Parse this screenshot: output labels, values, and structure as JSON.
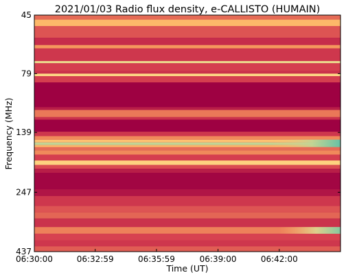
{
  "chart_data": {
    "type": "heatmap",
    "title": "2021/01/03  Radio flux density, e-CALLISTO (HUMAIN)",
    "xlabel": "Time (UT)",
    "ylabel": "Frequency (MHz)",
    "x_ticks": [
      "06:30:00",
      "06:32:59",
      "06:35:59",
      "06:39:00",
      "06:42:00"
    ],
    "y_ticks": [
      "45",
      "79",
      "139",
      "247",
      "437"
    ],
    "x_range": [
      "06:30:00",
      "06:45:00"
    ],
    "y_range_mhz": [
      45,
      437
    ],
    "y_axis_inverted": true,
    "colormap": "Spectral_r",
    "colors": {
      "background": "#9e0142",
      "mid": "#d53e4f",
      "bright": "#fdae61",
      "peak": "#fee08b",
      "extreme": "#66c2a5"
    },
    "bands": [
      {
        "f_start": 45,
        "f_end": 47,
        "level": 0.35
      },
      {
        "f_start": 47,
        "f_end": 50,
        "level": 0.55
      },
      {
        "f_start": 50,
        "f_end": 56,
        "level": 0.3
      },
      {
        "f_start": 56,
        "f_end": 60,
        "level": 0.18
      },
      {
        "f_start": 60,
        "f_end": 62,
        "level": 0.45
      },
      {
        "f_start": 62,
        "f_end": 70,
        "level": 0.22
      },
      {
        "f_start": 70,
        "f_end": 71.5,
        "level": 0.78
      },
      {
        "f_start": 71.5,
        "f_end": 77,
        "level": 0.25
      },
      {
        "f_start": 77,
        "f_end": 79,
        "level": 0.2
      },
      {
        "f_start": 79,
        "f_end": 81,
        "level": 0.72
      },
      {
        "f_start": 81,
        "f_end": 86,
        "level": 0.25
      },
      {
        "f_start": 86,
        "f_end": 109,
        "level": 0.0
      },
      {
        "f_start": 109,
        "f_end": 112,
        "level": 0.12
      },
      {
        "f_start": 112,
        "f_end": 120,
        "level": 0.38
      },
      {
        "f_start": 120,
        "f_end": 123,
        "level": 0.2
      },
      {
        "f_start": 123,
        "f_end": 138,
        "level": 0.0
      },
      {
        "f_start": 138,
        "f_end": 144,
        "level": 0.22
      },
      {
        "f_start": 144,
        "f_end": 149,
        "level": 0.42
      },
      {
        "f_start": 149,
        "f_end": 153,
        "level": 0.6
      },
      {
        "f_start": 153,
        "f_end": 157,
        "level": 0.85
      },
      {
        "f_start": 157,
        "f_end": 160,
        "level": 0.55
      },
      {
        "f_start": 160,
        "f_end": 165,
        "level": 0.35
      },
      {
        "f_start": 165,
        "f_end": 172,
        "level": 0.42
      },
      {
        "f_start": 172,
        "f_end": 182,
        "level": 0.25
      },
      {
        "f_start": 182,
        "f_end": 190,
        "level": 0.68
      },
      {
        "f_start": 190,
        "f_end": 197,
        "level": 0.28
      },
      {
        "f_start": 197,
        "f_end": 205,
        "level": 0.12
      },
      {
        "f_start": 205,
        "f_end": 240,
        "level": 0.02
      },
      {
        "f_start": 240,
        "f_end": 256,
        "level": 0.08
      },
      {
        "f_start": 256,
        "f_end": 282,
        "level": 0.22
      },
      {
        "f_start": 282,
        "f_end": 300,
        "level": 0.3
      },
      {
        "f_start": 300,
        "f_end": 318,
        "level": 0.34
      },
      {
        "f_start": 318,
        "f_end": 345,
        "level": 0.2
      },
      {
        "f_start": 345,
        "f_end": 368,
        "level": 0.4
      },
      {
        "f_start": 368,
        "f_end": 392,
        "level": 0.26
      },
      {
        "f_start": 392,
        "f_end": 415,
        "level": 0.22
      },
      {
        "f_start": 415,
        "f_end": 437,
        "level": 0.32
      }
    ],
    "enhancements": [
      {
        "f_start": 149,
        "f_end": 160,
        "t_start": "06:41:30",
        "t_end": "06:45:00",
        "peak_level": 1.0
      },
      {
        "f_start": 345,
        "f_end": 368,
        "t_start": "06:42:00",
        "t_end": "06:45:00",
        "peak_level": 0.95
      }
    ]
  }
}
